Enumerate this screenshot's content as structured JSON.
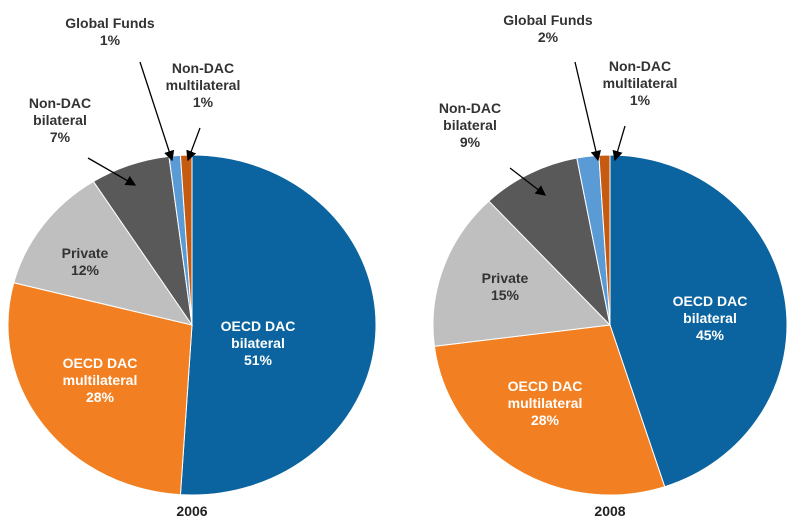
{
  "chart_data": [
    {
      "type": "pie",
      "title": "2006",
      "categories": [
        "OECD DAC bilateral",
        "OECD DAC multilateral",
        "Private",
        "Non-DAC bilateral",
        "Global Funds",
        "Non-DAC multilateral"
      ],
      "values": [
        51,
        28,
        12,
        7,
        1,
        1
      ],
      "value_labels": [
        "51%",
        "28%",
        "12%",
        "7%",
        "1%",
        "1%"
      ],
      "colors": [
        "#0b64a0",
        "#f28022",
        "#bfbfbf",
        "#595959",
        "#5b9bd5",
        "#c55a11"
      ]
    },
    {
      "type": "pie",
      "title": "2008",
      "categories": [
        "OECD DAC bilateral",
        "OECD DAC multilateral",
        "Private",
        "Non-DAC bilateral",
        "Global Funds",
        "Non-DAC multilateral"
      ],
      "values": [
        45,
        28,
        15,
        9,
        2,
        1
      ],
      "value_labels": [
        "45%",
        "28%",
        "15%",
        "9%",
        "2%",
        "1%"
      ],
      "colors": [
        "#0b64a0",
        "#f28022",
        "#bfbfbf",
        "#595959",
        "#5b9bd5",
        "#c55a11"
      ]
    }
  ]
}
